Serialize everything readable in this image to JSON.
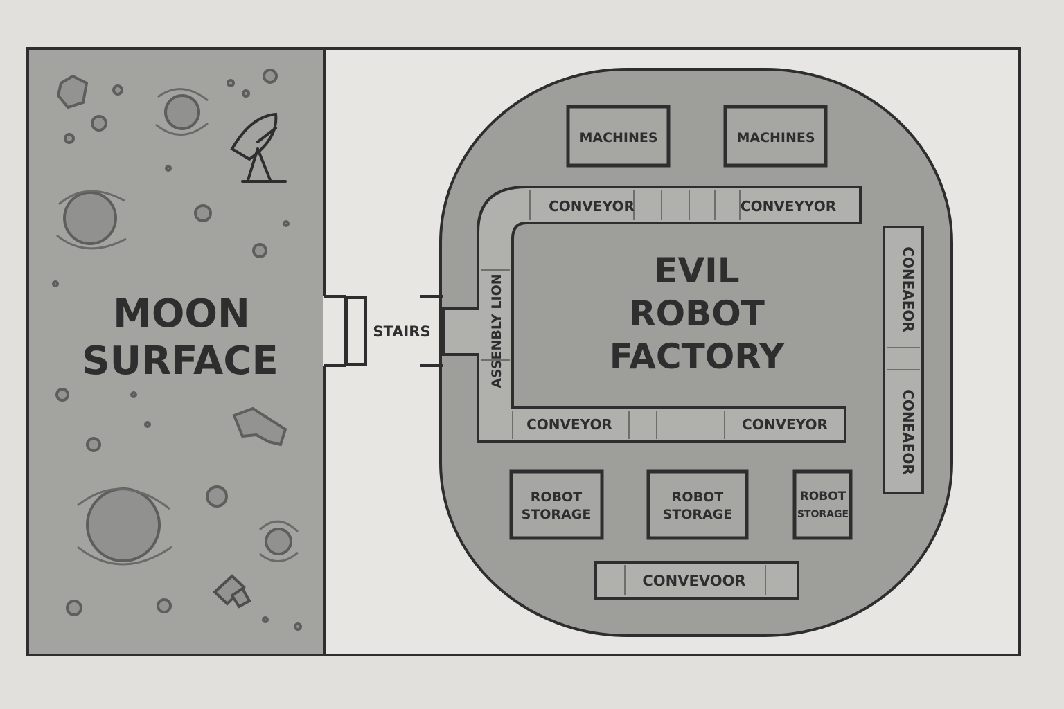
{
  "colors": {
    "background": "#e2e0dc",
    "interior": "#e8e6e2",
    "moon": "#a3a3a0",
    "factory": "#9e9e9b",
    "room": "#a6a6a3",
    "conveyor": "#b0b0ad",
    "outline": "#2e2e2e"
  },
  "icons": {
    "satellite": "satellite-dish-icon",
    "rover": "rover-icon"
  },
  "moon": {
    "line1": "MOON",
    "line2": "SURFACE"
  },
  "stairs": "STAIRS",
  "factory": {
    "line1": "EVIL",
    "line2": "ROBOT",
    "line3": "FACTORY"
  },
  "machines": [
    "MACHINES",
    "MACHINES"
  ],
  "conveyors": {
    "top_left": "CONVEYOR",
    "top_right": "CONVEYYOR",
    "right_upper": "CONEAEOR",
    "right_lower": "CONEAEOR",
    "bottom_left": "CONVEYOR",
    "bottom_right": "CONVEYOR",
    "bottom": "CONVEVOOR"
  },
  "assembly": "ASSENBLY LION",
  "storage": [
    {
      "line1": "ROBOT",
      "line2": "STORAGE"
    },
    {
      "line1": "ROBOT",
      "line2": "STORAGE"
    },
    {
      "line1": "ROBOT",
      "line2": "STORAGE"
    }
  ]
}
